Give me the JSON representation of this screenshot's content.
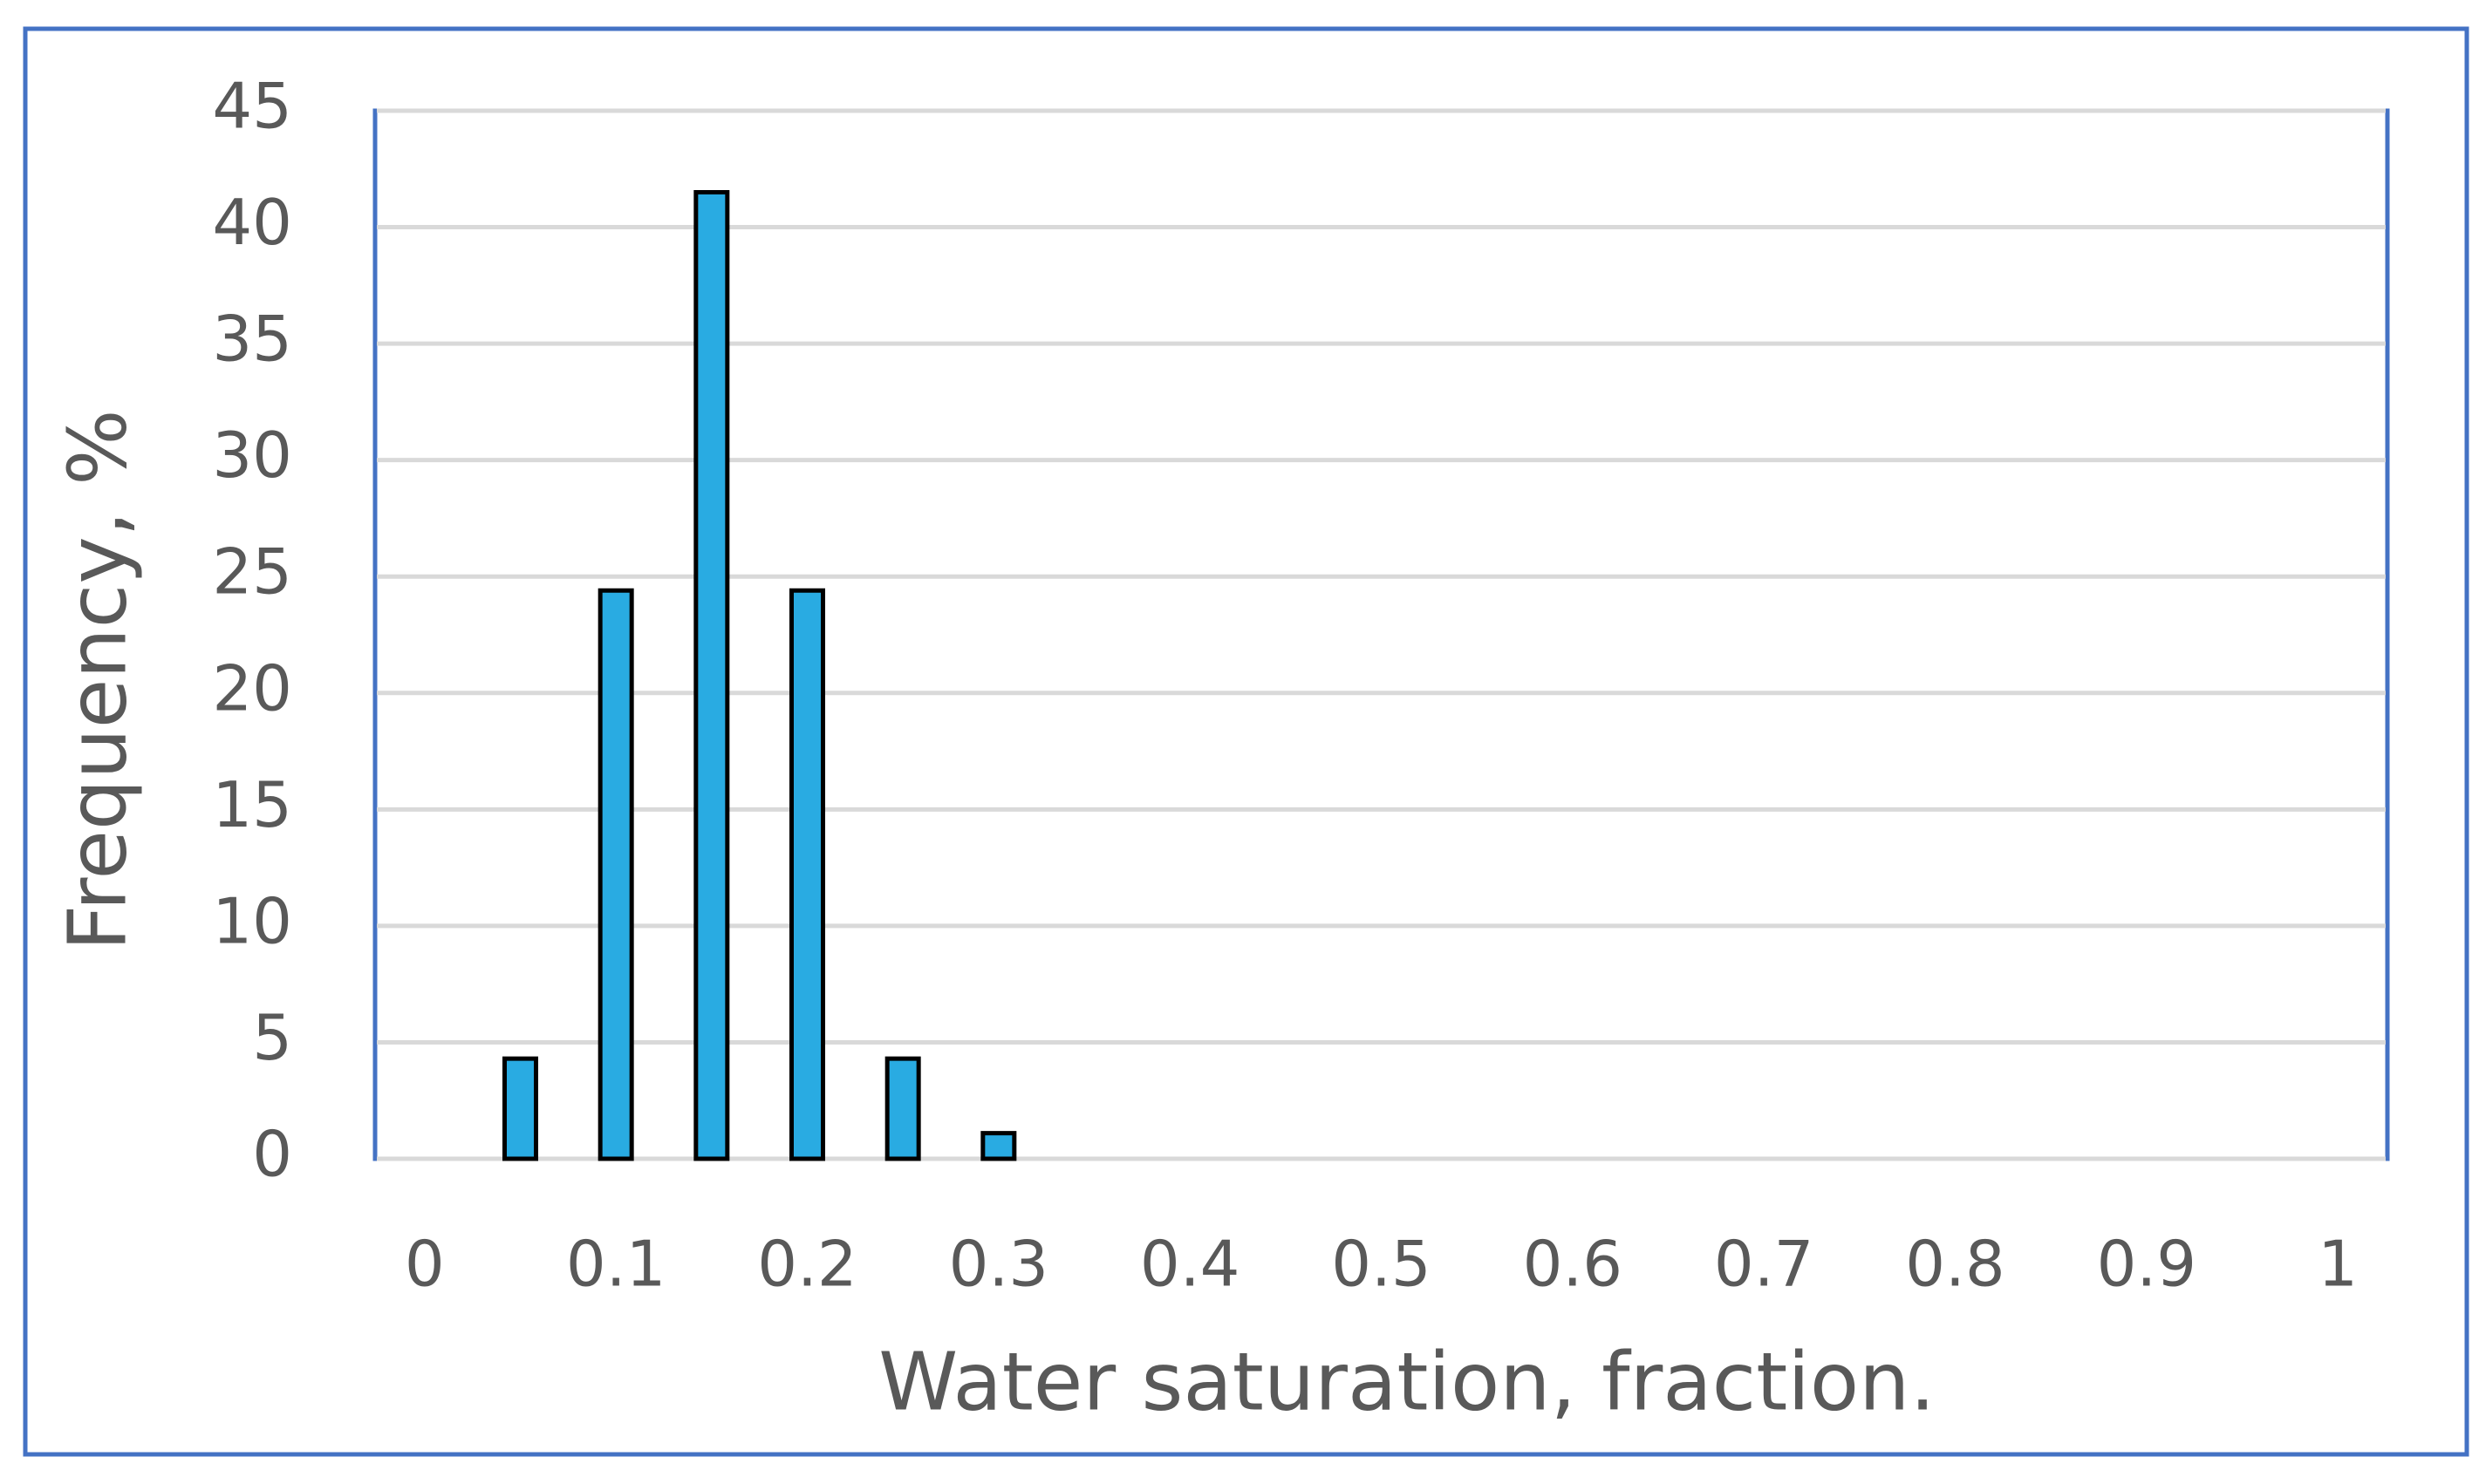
{
  "chart_data": {
    "type": "bar",
    "x_label": "Water saturation, fraction.",
    "y_label": "Frequency, %",
    "categories": [
      0,
      null,
      0.1,
      null,
      0.2,
      null,
      0.3,
      null,
      0.4,
      null,
      0.5,
      null,
      0.6,
      null,
      0.7,
      null,
      0.8,
      null,
      0.9,
      null,
      1
    ],
    "values": [
      0,
      4.3,
      24.4,
      41.5,
      24.4,
      4.3,
      1.1,
      0,
      0,
      0,
      0,
      0,
      0,
      0,
      0,
      0,
      0,
      0,
      0,
      0,
      0
    ],
    "color": "#29abe2",
    "ylim": [
      0,
      45
    ],
    "yticks": [
      0,
      5,
      10,
      15,
      20,
      25,
      30,
      35,
      40,
      45
    ],
    "grid": true
  }
}
